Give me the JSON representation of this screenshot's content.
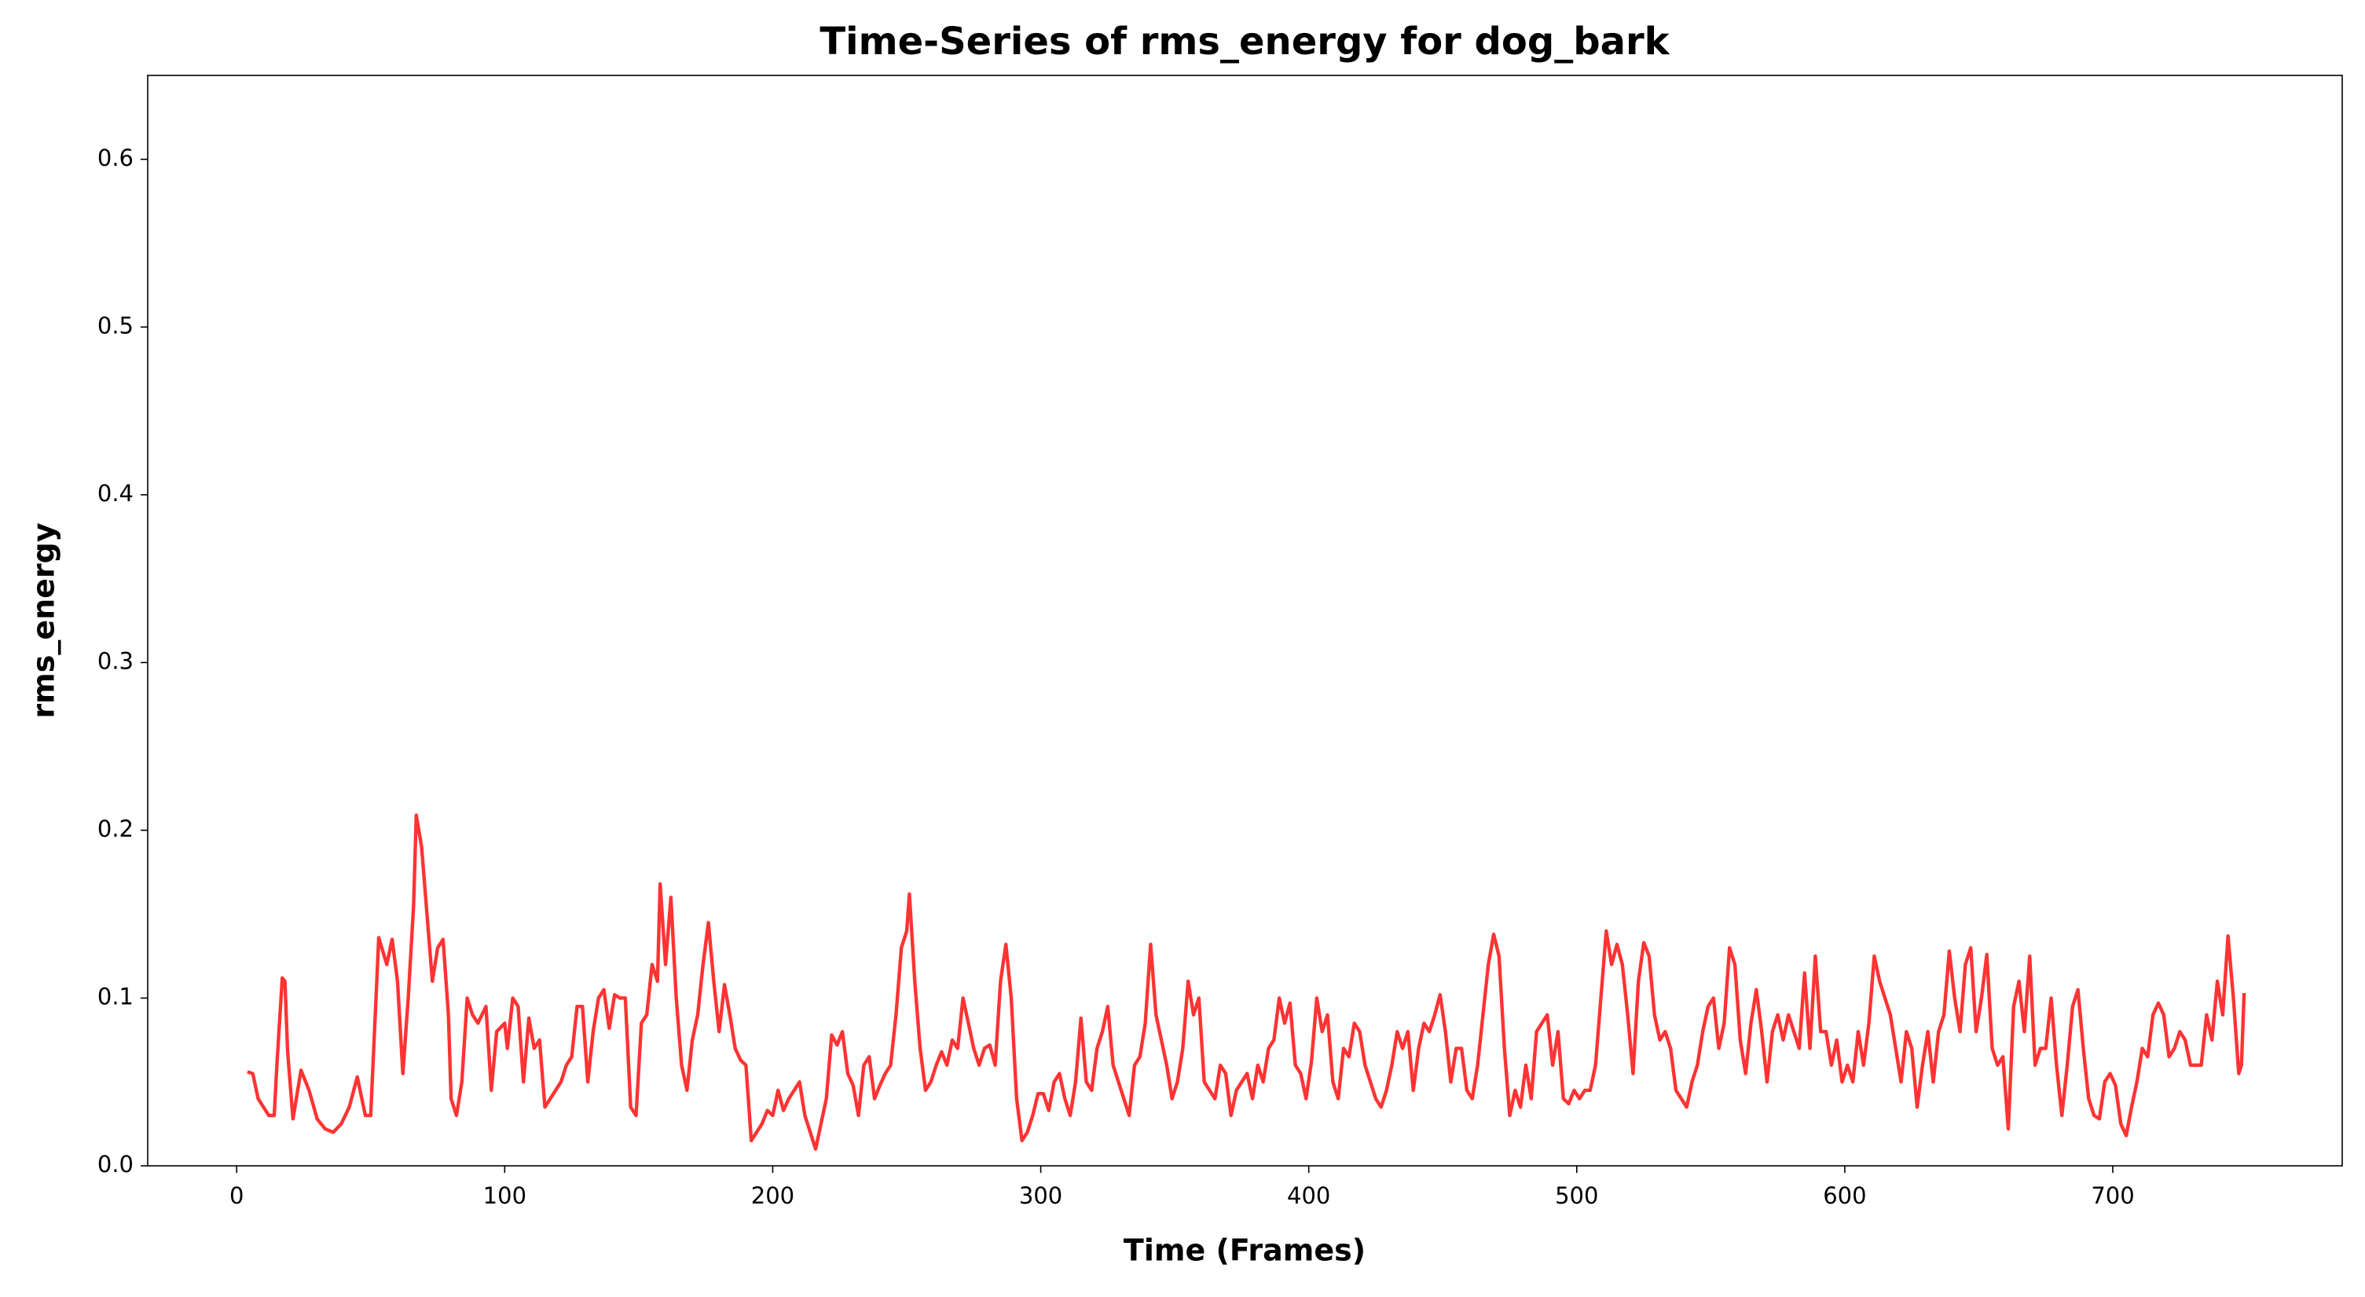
{
  "chart_data": {
    "type": "line",
    "title": "Time-Series of rms_energy for dog_bark",
    "xlabel": "Time (Frames)",
    "ylabel": "rms_energy",
    "color": "#ff3333",
    "xlim": [
      -33.2,
      785.6
    ],
    "ylim": [
      0,
      0.65
    ],
    "xticks": [
      0,
      100,
      200,
      300,
      400,
      500,
      600,
      700
    ],
    "yticks": [
      {
        "value": 0,
        "label": "0.0"
      },
      0.1,
      0.2,
      0.3,
      0.4,
      0.5,
      0.6
    ],
    "x": [
      4,
      6,
      8,
      10,
      12,
      14,
      15,
      17,
      18,
      19,
      21,
      24,
      27,
      30,
      33,
      36,
      39,
      42,
      45,
      48,
      50,
      53,
      56,
      58,
      60,
      62,
      64,
      66,
      67,
      69,
      71,
      73,
      75,
      77,
      79,
      80,
      82,
      84,
      86,
      88,
      90,
      93,
      95,
      97,
      100,
      101,
      103,
      105,
      107,
      109,
      111,
      113,
      115,
      117,
      119,
      121,
      123,
      125,
      127,
      129,
      131,
      133,
      135,
      137,
      139,
      141,
      143,
      145,
      147,
      149,
      151,
      153,
      155,
      157,
      158,
      160,
      162,
      164,
      166,
      168,
      170,
      172,
      174,
      176,
      178,
      180,
      182,
      184,
      186,
      188,
      190,
      192,
      194,
      196,
      198,
      200,
      202,
      204,
      206,
      208,
      210,
      212,
      214,
      216,
      218,
      220,
      222,
      224,
      226,
      228,
      230,
      232,
      234,
      236,
      238,
      240,
      242,
      244,
      246,
      248,
      250,
      251,
      253,
      255,
      257,
      259,
      261,
      263,
      265,
      267,
      269,
      271,
      273,
      275,
      277,
      279,
      281,
      283,
      285,
      287,
      289,
      291,
      293,
      295,
      297,
      299,
      301,
      303,
      305,
      307,
      309,
      311,
      313,
      315,
      317,
      319,
      321,
      323,
      325,
      327,
      329,
      331,
      333,
      335,
      337,
      339,
      341,
      343,
      345,
      347,
      349,
      351,
      353,
      355,
      357,
      359,
      361,
      363,
      365,
      367,
      369,
      371,
      373,
      375,
      377,
      379,
      381,
      383,
      385,
      387,
      389,
      391,
      393,
      395,
      397,
      399,
      401,
      403,
      405,
      407,
      409,
      411,
      413,
      415,
      417,
      419,
      421,
      423,
      425,
      427,
      429,
      431,
      433,
      435,
      437,
      439,
      441,
      443,
      445,
      447,
      449,
      451,
      453,
      455,
      457,
      459,
      461,
      463,
      465,
      467,
      469,
      471,
      473,
      475,
      477,
      479,
      481,
      483,
      485,
      487,
      489,
      491,
      493,
      495,
      497,
      499,
      501,
      503,
      505,
      507,
      509,
      511,
      513,
      515,
      517,
      519,
      521,
      523,
      525,
      527,
      529,
      531,
      533,
      535,
      537,
      539,
      541,
      543,
      545,
      547,
      549,
      551,
      553,
      555,
      557,
      559,
      561,
      563,
      565,
      567,
      569,
      571,
      573,
      575,
      577,
      579,
      581,
      583,
      585,
      587,
      589,
      591,
      593,
      595,
      597,
      599,
      601,
      603,
      605,
      607,
      609,
      611,
      613,
      615,
      617,
      619,
      621,
      623,
      625,
      627,
      629,
      631,
      633,
      635,
      637,
      639,
      641,
      643,
      645,
      647,
      649,
      651,
      653,
      655,
      657,
      659,
      661,
      663,
      665,
      667,
      669,
      671,
      673,
      675,
      677,
      679,
      681,
      683,
      685,
      687,
      689,
      691,
      693,
      695,
      697,
      699,
      701,
      703,
      705,
      707,
      709,
      711,
      713,
      715,
      717,
      719,
      721,
      723,
      725,
      727,
      729,
      731,
      733,
      735,
      737,
      739,
      741,
      743,
      745,
      747,
      748,
      749
    ],
    "values": [
      0.056,
      0.055,
      0.04,
      0.035,
      0.03,
      0.03,
      0.06,
      0.112,
      0.11,
      0.068,
      0.028,
      0.057,
      0.045,
      0.028,
      0.022,
      0.02,
      0.025,
      0.035,
      0.053,
      0.03,
      0.03,
      0.136,
      0.12,
      0.135,
      0.11,
      0.055,
      0.1,
      0.155,
      0.209,
      0.19,
      0.15,
      0.11,
      0.13,
      0.135,
      0.09,
      0.04,
      0.03,
      0.05,
      0.1,
      0.09,
      0.085,
      0.095,
      0.045,
      0.08,
      0.085,
      0.07,
      0.1,
      0.095,
      0.05,
      0.088,
      0.07,
      0.075,
      0.035,
      0.04,
      0.045,
      0.05,
      0.06,
      0.065,
      0.095,
      0.095,
      0.05,
      0.08,
      0.1,
      0.105,
      0.082,
      0.102,
      0.1,
      0.1,
      0.035,
      0.03,
      0.085,
      0.09,
      0.12,
      0.11,
      0.168,
      0.12,
      0.16,
      0.1,
      0.06,
      0.045,
      0.075,
      0.09,
      0.12,
      0.145,
      0.11,
      0.08,
      0.108,
      0.09,
      0.07,
      0.063,
      0.06,
      0.015,
      0.02,
      0.025,
      0.033,
      0.03,
      0.045,
      0.033,
      0.04,
      0.045,
      0.05,
      0.03,
      0.02,
      0.01,
      0.025,
      0.04,
      0.078,
      0.072,
      0.08,
      0.055,
      0.048,
      0.03,
      0.06,
      0.065,
      0.04,
      0.048,
      0.055,
      0.06,
      0.09,
      0.13,
      0.14,
      0.162,
      0.11,
      0.07,
      0.045,
      0.05,
      0.06,
      0.068,
      0.06,
      0.075,
      0.07,
      0.1,
      0.085,
      0.07,
      0.06,
      0.07,
      0.072,
      0.06,
      0.11,
      0.132,
      0.1,
      0.04,
      0.015,
      0.02,
      0.03,
      0.043,
      0.043,
      0.033,
      0.05,
      0.055,
      0.04,
      0.03,
      0.05,
      0.088,
      0.05,
      0.045,
      0.07,
      0.08,
      0.095,
      0.06,
      0.05,
      0.04,
      0.03,
      0.06,
      0.065,
      0.085,
      0.132,
      0.09,
      0.075,
      0.06,
      0.04,
      0.05,
      0.07,
      0.11,
      0.09,
      0.1,
      0.05,
      0.045,
      0.04,
      0.06,
      0.055,
      0.03,
      0.045,
      0.05,
      0.055,
      0.04,
      0.06,
      0.05,
      0.07,
      0.075,
      0.1,
      0.085,
      0.097,
      0.06,
      0.055,
      0.04,
      0.062,
      0.1,
      0.08,
      0.09,
      0.05,
      0.04,
      0.07,
      0.065,
      0.085,
      0.08,
      0.06,
      0.05,
      0.04,
      0.035,
      0.045,
      0.06,
      0.08,
      0.07,
      0.08,
      0.045,
      0.07,
      0.085,
      0.08,
      0.09,
      0.102,
      0.08,
      0.05,
      0.07,
      0.07,
      0.045,
      0.04,
      0.06,
      0.09,
      0.12,
      0.138,
      0.125,
      0.07,
      0.03,
      0.045,
      0.035,
      0.06,
      0.04,
      0.08,
      0.085,
      0.09,
      0.06,
      0.08,
      0.04,
      0.037,
      0.045,
      0.04,
      0.045,
      0.045,
      0.06,
      0.1,
      0.14,
      0.12,
      0.132,
      0.12,
      0.09,
      0.055,
      0.11,
      0.133,
      0.125,
      0.09,
      0.075,
      0.08,
      0.07,
      0.045,
      0.04,
      0.035,
      0.05,
      0.06,
      0.08,
      0.095,
      0.1,
      0.07,
      0.085,
      0.13,
      0.12,
      0.075,
      0.055,
      0.085,
      0.105,
      0.08,
      0.05,
      0.08,
      0.09,
      0.075,
      0.09,
      0.08,
      0.07,
      0.115,
      0.07,
      0.125,
      0.08,
      0.08,
      0.06,
      0.075,
      0.05,
      0.06,
      0.05,
      0.08,
      0.06,
      0.085,
      0.125,
      0.11,
      0.1,
      0.09,
      0.07,
      0.05,
      0.08,
      0.07,
      0.035,
      0.06,
      0.08,
      0.05,
      0.08,
      0.09,
      0.128,
      0.1,
      0.08,
      0.12,
      0.13,
      0.08,
      0.1,
      0.126,
      0.07,
      0.06,
      0.065,
      0.022,
      0.095,
      0.11,
      0.08,
      0.125,
      0.06,
      0.07,
      0.07,
      0.1,
      0.06,
      0.03,
      0.06,
      0.095,
      0.105,
      0.07,
      0.04,
      0.03,
      0.028,
      0.05,
      0.055,
      0.048,
      0.025,
      0.018,
      0.035,
      0.05,
      0.07,
      0.065,
      0.09,
      0.097,
      0.09,
      0.065,
      0.07,
      0.08,
      0.075,
      0.06,
      0.06,
      0.06,
      0.09,
      0.075,
      0.11,
      0.09,
      0.137,
      0.1,
      0.055,
      0.06,
      0.103
    ]
  }
}
